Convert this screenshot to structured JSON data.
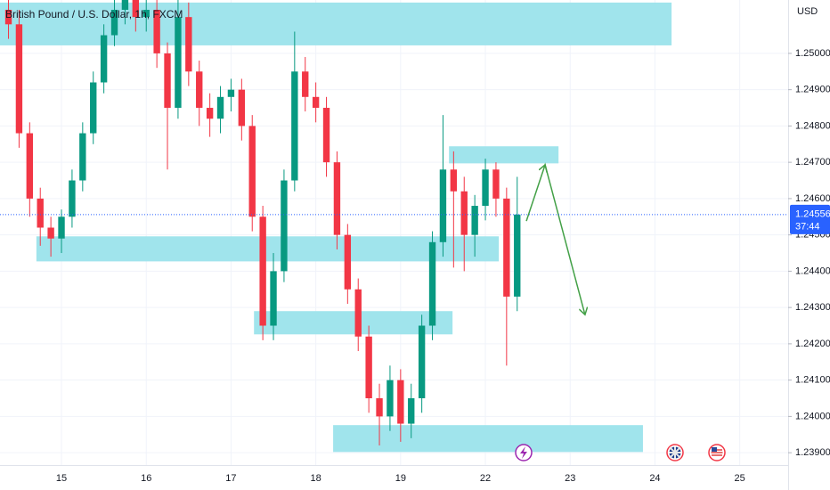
{
  "chart_data": {
    "type": "candlestick",
    "title": "British Pound / U.S. Dollar, 1h, FXCM",
    "currency": "USD",
    "x": [
      -15,
      -12,
      -9,
      -6,
      -3,
      0,
      3,
      6,
      9,
      12,
      15,
      18,
      21,
      24,
      27,
      30,
      33,
      36,
      39,
      42,
      45,
      48,
      51,
      54,
      57,
      60,
      63,
      66,
      69,
      72,
      75,
      78,
      81,
      84,
      87,
      90,
      93,
      96,
      99,
      102,
      105,
      108,
      111,
      114,
      117,
      120,
      123,
      126,
      129
    ],
    "open": [
      1.2512,
      1.2508,
      1.2478,
      1.246,
      1.2452,
      1.2449,
      1.2455,
      1.2465,
      1.2478,
      1.2492,
      1.2505,
      1.2512,
      1.2515,
      1.251,
      1.2512,
      1.25,
      1.2485,
      1.251,
      1.2495,
      1.2485,
      1.2482,
      1.2488,
      1.249,
      1.248,
      1.2455,
      1.2425,
      1.244,
      1.2465,
      1.2495,
      1.2488,
      1.2485,
      1.247,
      1.245,
      1.2435,
      1.2422,
      1.2405,
      1.24,
      1.241,
      1.2398,
      1.2405,
      1.2425,
      1.2448,
      1.2468,
      1.2462,
      1.245,
      1.2458,
      1.2468,
      1.246,
      1.2433
    ],
    "high": [
      1.2518,
      1.2512,
      1.2481,
      1.2463,
      1.2455,
      1.2457,
      1.2468,
      1.2481,
      1.2495,
      1.2508,
      1.2516,
      1.2519,
      1.2519,
      1.2516,
      1.2515,
      1.2503,
      1.2515,
      1.2514,
      1.2498,
      1.2489,
      1.2491,
      1.2493,
      1.2493,
      1.2483,
      1.2458,
      1.2445,
      1.2468,
      1.2506,
      1.2499,
      1.2492,
      1.2488,
      1.2473,
      1.2453,
      1.2438,
      1.2425,
      1.2409,
      1.2414,
      1.2413,
      1.2409,
      1.2428,
      1.2451,
      1.2483,
      1.2473,
      1.2466,
      1.2461,
      1.2471,
      1.247,
      1.2463,
      1.2466
    ],
    "low": [
      1.2504,
      1.2474,
      1.2455,
      1.2447,
      1.2444,
      1.2445,
      1.2452,
      1.2462,
      1.2475,
      1.2489,
      1.2502,
      1.2508,
      1.2506,
      1.2506,
      1.2496,
      1.2468,
      1.2482,
      1.2491,
      1.248,
      1.2477,
      1.2478,
      1.2484,
      1.2476,
      1.2451,
      1.2421,
      1.2421,
      1.2437,
      1.2462,
      1.2484,
      1.2481,
      1.2466,
      1.2446,
      1.2431,
      1.2418,
      1.2401,
      1.2392,
      1.2396,
      1.2393,
      1.2394,
      1.2401,
      1.2421,
      1.2444,
      1.2441,
      1.244,
      1.2444,
      1.2454,
      1.2455,
      1.2414,
      1.2429
    ],
    "close": [
      1.2508,
      1.2478,
      1.246,
      1.2452,
      1.2449,
      1.2455,
      1.2465,
      1.2478,
      1.2492,
      1.2505,
      1.2512,
      1.2515,
      1.251,
      1.2512,
      1.25,
      1.2485,
      1.251,
      1.2495,
      1.2485,
      1.2482,
      1.2488,
      1.249,
      1.248,
      1.2455,
      1.2425,
      1.244,
      1.2465,
      1.2495,
      1.2488,
      1.2485,
      1.247,
      1.245,
      1.2435,
      1.2422,
      1.2405,
      1.24,
      1.241,
      1.2398,
      1.2405,
      1.2425,
      1.2448,
      1.2468,
      1.2462,
      1.245,
      1.2458,
      1.2468,
      1.246,
      1.2433,
      1.24556
    ],
    "up_color": "#089981",
    "down_color": "#f23645",
    "last_price": {
      "value": 1.24556,
      "label": "1.24556"
    },
    "countdown": "37:44",
    "zones": [
      {
        "x": [
          -17.4,
          172.7
        ],
        "y": [
          1.25022,
          1.2514
        ]
      },
      {
        "x": [
          -7.1,
          123.8
        ],
        "y": [
          1.24427,
          1.24496
        ]
      },
      {
        "x": [
          54.5,
          110.7
        ],
        "y": [
          1.24226,
          1.2429
        ]
      },
      {
        "x": [
          76.9,
          164.6
        ],
        "y": [
          1.23902,
          1.23976
        ]
      },
      {
        "x": [
          109.7,
          140.7
        ],
        "y": [
          1.24697,
          1.24744
        ]
      }
    ],
    "zone_color": "#9be3eb",
    "arrow": {
      "x": [
        131.6,
        136.9,
        148.2
      ],
      "y": [
        1.24538,
        1.24693,
        1.2428
      ],
      "color": "#43a047"
    },
    "xlim": [
      -17.4,
      205.7
    ],
    "ylim": [
      1.23866,
      1.25147
    ],
    "xticks": [
      {
        "value": 0,
        "label": "15"
      },
      {
        "value": 24,
        "label": "16"
      },
      {
        "value": 48,
        "label": "17"
      },
      {
        "value": 72,
        "label": "18"
      },
      {
        "value": 96,
        "label": "19"
      },
      {
        "value": 120,
        "label": "22"
      },
      {
        "value": 144,
        "label": "23"
      },
      {
        "value": 168,
        "label": "24"
      },
      {
        "value": 192,
        "label": "25"
      }
    ],
    "yticks": [
      {
        "value": 1.239,
        "label": "1.23900"
      },
      {
        "value": 1.24,
        "label": "1.24000"
      },
      {
        "value": 1.241,
        "label": "1.24100"
      },
      {
        "value": 1.242,
        "label": "1.24200"
      },
      {
        "value": 1.243,
        "label": "1.24300"
      },
      {
        "value": 1.244,
        "label": "1.24400"
      },
      {
        "value": 1.245,
        "label": "1.24500"
      },
      {
        "value": 1.246,
        "label": "1.24600"
      },
      {
        "value": 1.247,
        "label": "1.24700"
      },
      {
        "value": 1.248,
        "label": "1.24800"
      },
      {
        "value": 1.249,
        "label": "1.24900"
      },
      {
        "value": 1.25,
        "label": "1.25000"
      }
    ],
    "grid": true
  }
}
